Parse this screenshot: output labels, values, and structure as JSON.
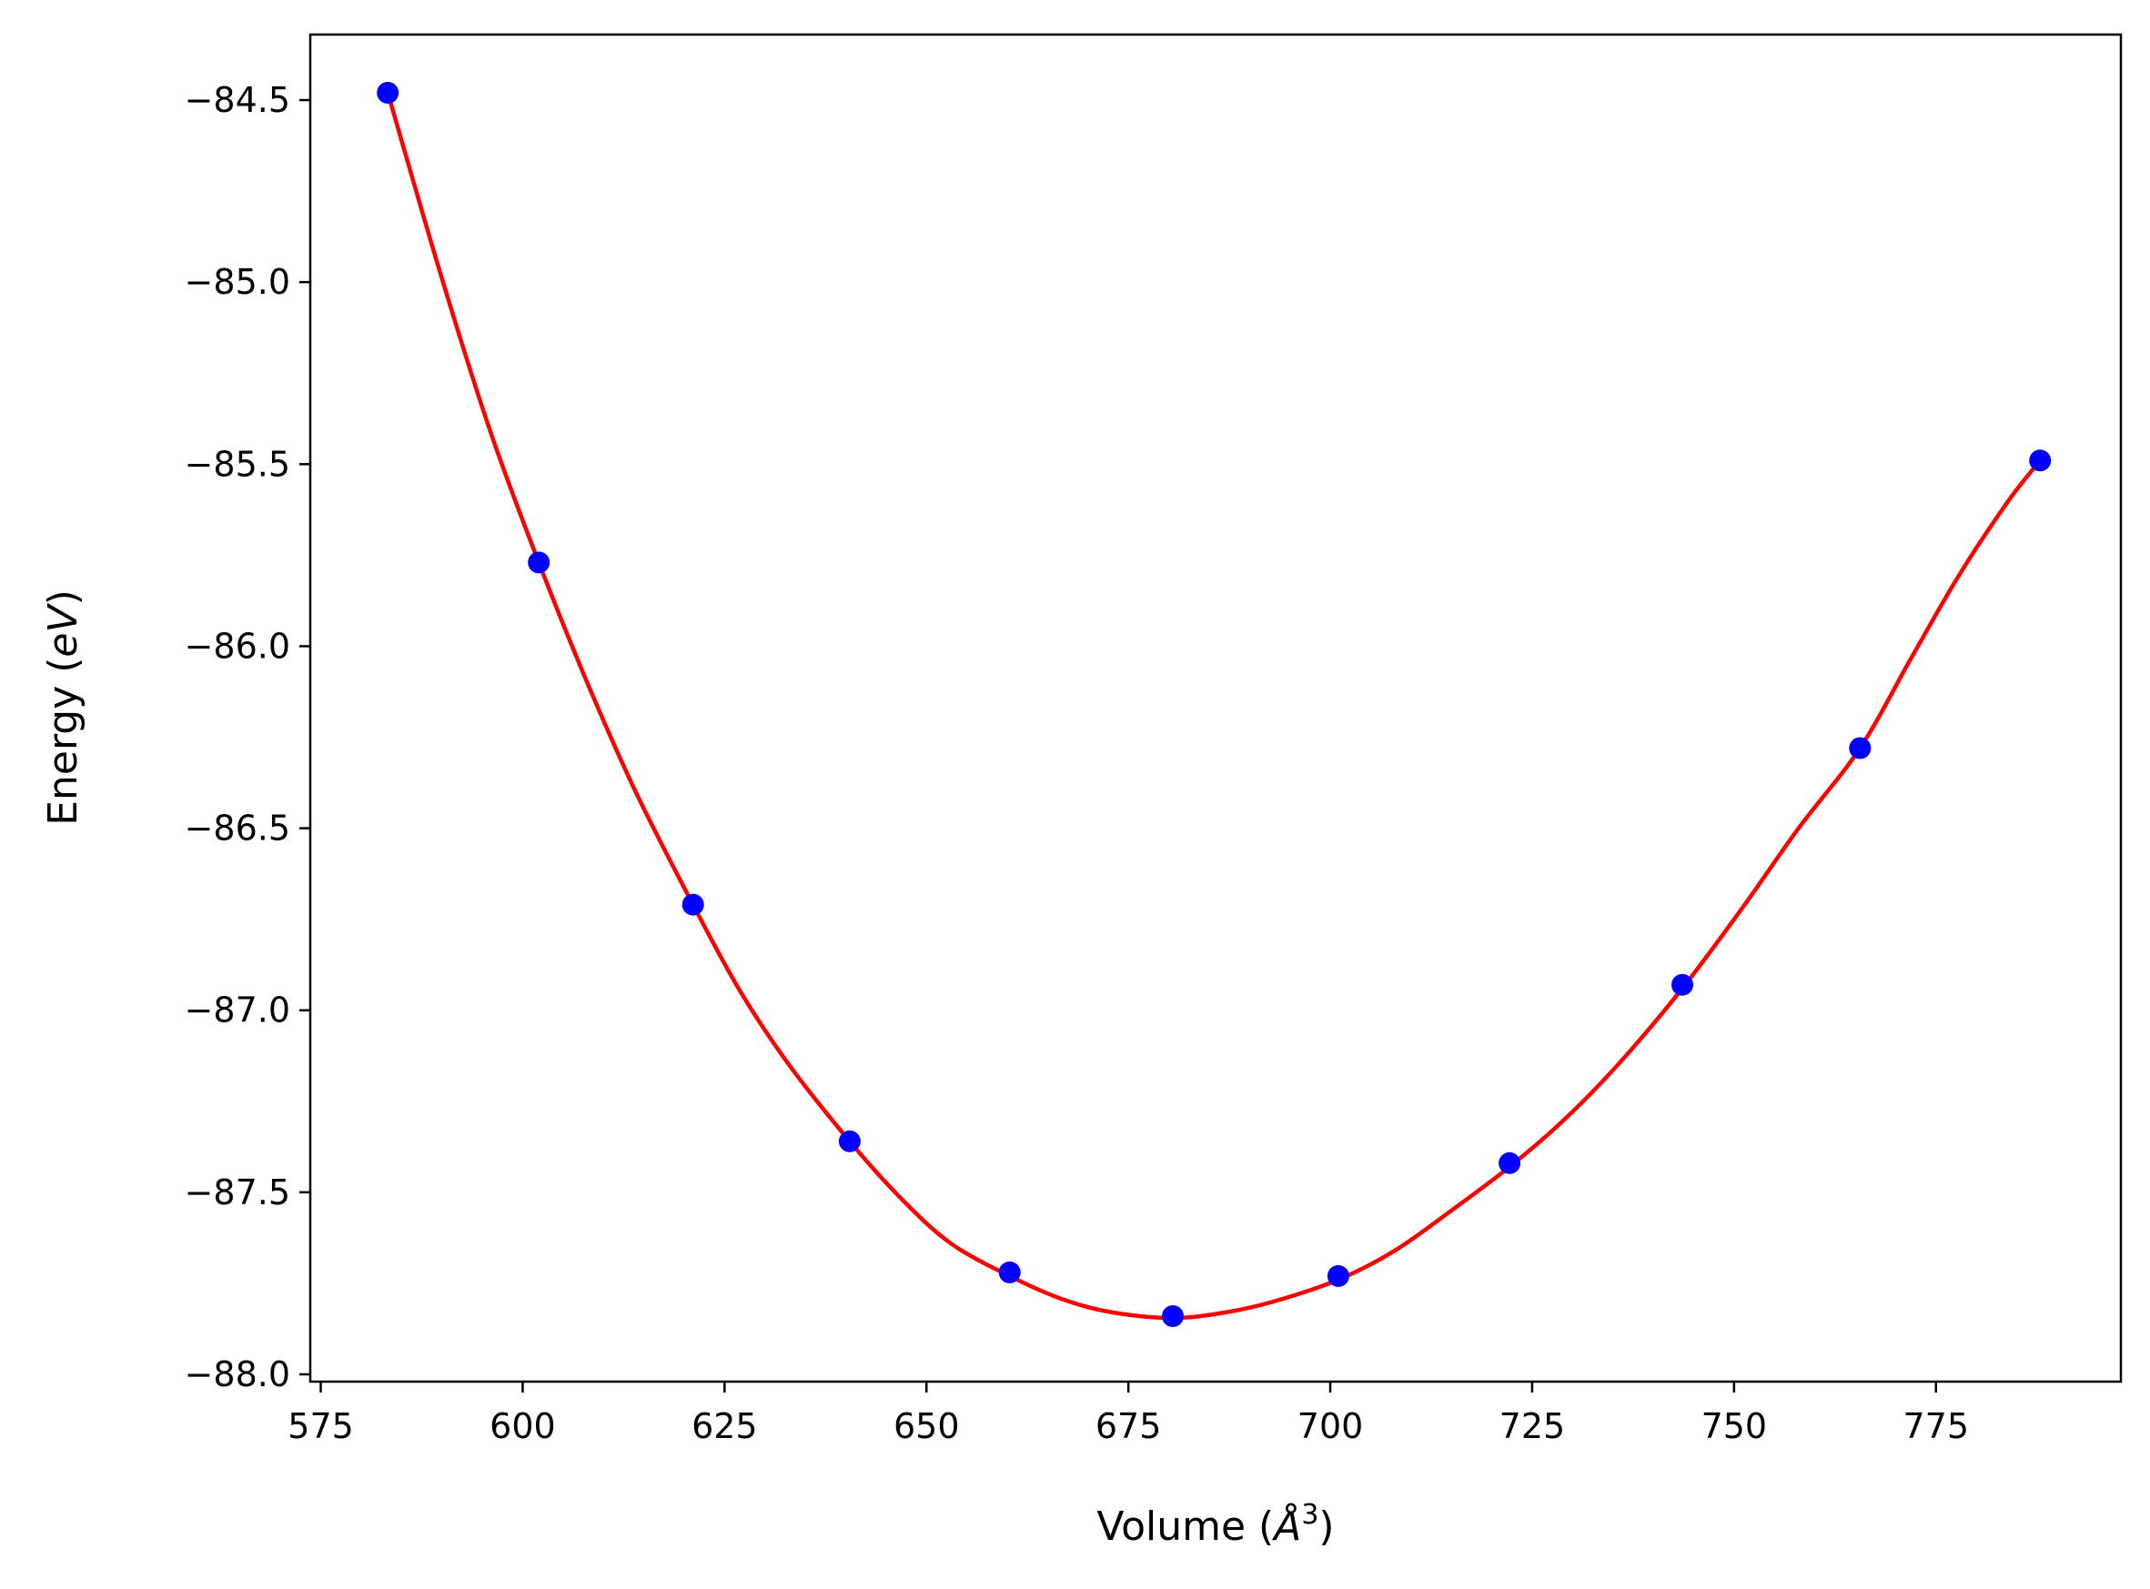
{
  "chart_data": {
    "type": "line",
    "title": "",
    "xlabel": "Volume (Å³)",
    "xlabel_parts": {
      "pre": "Volume (",
      "sym": "Å",
      "sup": "3",
      "post": ")"
    },
    "ylabel": "Energy (eV)",
    "ylabel_parts": {
      "pre": "Energy (",
      "ital": "eV",
      "post": ")"
    },
    "xlim": [
      573.7,
      797.9
    ],
    "ylim": [
      -88.02,
      -84.32
    ],
    "xticks": [
      575,
      600,
      625,
      650,
      675,
      700,
      725,
      750,
      775
    ],
    "xtick_labels": [
      "575",
      "600",
      "625",
      "650",
      "675",
      "700",
      "725",
      "750",
      "775"
    ],
    "yticks": [
      -84.5,
      -85.0,
      -85.5,
      -86.0,
      -86.5,
      -87.0,
      -87.5,
      -88.0
    ],
    "ytick_labels": [
      "−84.5",
      "−85.0",
      "−85.5",
      "−86.0",
      "−86.5",
      "−87.0",
      "−87.5",
      "−88.0"
    ],
    "grid": false,
    "legend": "none",
    "series": [
      {
        "kind": "fit-line",
        "color": "#ff0000",
        "x": [
          583.3,
          590,
          596,
          602.0,
          608,
          614,
          621.1,
          627,
          633,
          640.5,
          647,
          653,
          660.3,
          667,
          673,
          680.5,
          687,
          693,
          701.0,
          708,
          715,
          722.2,
          729,
          736,
          743.6,
          751,
          758,
          765.6,
          772,
          778,
          784,
          787.9
        ],
        "y": [
          -84.48,
          -84.99,
          -85.41,
          -85.77,
          -86.1,
          -86.4,
          -86.71,
          -86.95,
          -87.15,
          -87.36,
          -87.52,
          -87.64,
          -87.73,
          -87.795,
          -87.83,
          -87.845,
          -87.83,
          -87.8,
          -87.74,
          -87.66,
          -87.55,
          -87.43,
          -87.3,
          -87.14,
          -86.94,
          -86.72,
          -86.5,
          -86.28,
          -86.03,
          -85.8,
          -85.6,
          -85.49
        ]
      },
      {
        "kind": "data-points",
        "color": "#0000ff",
        "x": [
          583.3,
          602.0,
          621.1,
          640.5,
          660.3,
          680.5,
          701.0,
          722.2,
          743.6,
          765.6,
          787.9
        ],
        "y": [
          -84.48,
          -85.77,
          -86.71,
          -87.36,
          -87.72,
          -87.84,
          -87.73,
          -87.42,
          -86.93,
          -86.28,
          -85.49
        ]
      }
    ]
  }
}
